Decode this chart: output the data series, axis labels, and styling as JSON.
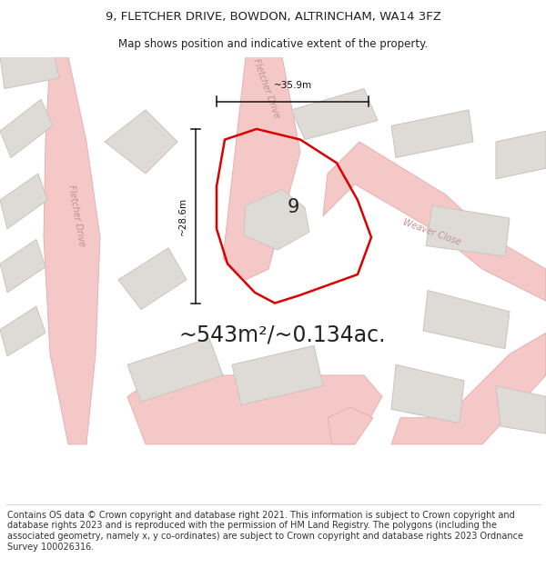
{
  "title_line1": "9, FLETCHER DRIVE, BOWDON, ALTRINCHAM, WA14 3FZ",
  "title_line2": "Map shows position and indicative extent of the property.",
  "area_text": "~543m²/~0.134ac.",
  "property_number": "9",
  "dim_width": "~35.9m",
  "dim_height": "~28.6m",
  "label_fletcher_drive_left": "Fletcher Drive",
  "label_fletcher_drive_bottom": "Fletcher Drive",
  "label_weaver_close": "Weaver Close",
  "copyright_text": "Contains OS data © Crown copyright and database right 2021. This information is subject to Crown copyright and database rights 2023 and is reproduced with the permission of HM Land Registry. The polygons (including the associated geometry, namely x, y co-ordinates) are subject to Crown copyright and database rights 2023 Ordnance Survey 100026316.",
  "bg_color": "#ffffff",
  "map_bg_color": "#f7f4f0",
  "road_color": "#f5c8c8",
  "road_line_color": "#e8a8a8",
  "building_color": "#dedbd7",
  "building_border_color": "#c8c5c0",
  "property_outline_color": "#dd0000",
  "text_color": "#222222",
  "dim_line_color": "#111111",
  "title_fontsize": 9.5,
  "subtitle_fontsize": 8.5,
  "area_fontsize": 17,
  "copyright_fontsize": 7.0,
  "road_label_color": "#c09090"
}
